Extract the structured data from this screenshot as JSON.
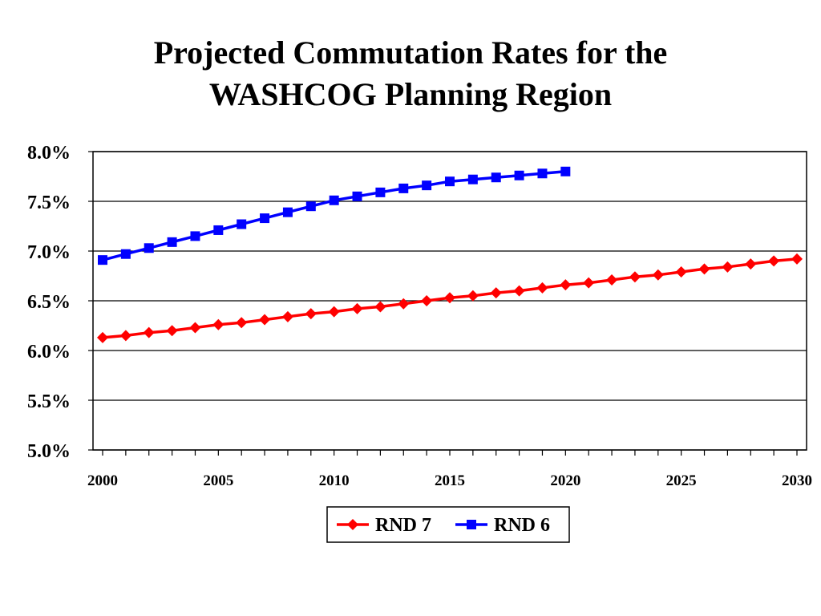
{
  "chart_data": {
    "type": "line",
    "title_line1": "Projected Commutation Rates for the",
    "title_line2": "WASHCOG Planning Region",
    "xlabel": "",
    "ylabel": "",
    "xlim": [
      2000,
      2030
    ],
    "ylim": [
      5.0,
      8.0
    ],
    "x_ticks": [
      "2000",
      "2005",
      "2010",
      "2015",
      "2020",
      "2025",
      "2030"
    ],
    "y_ticks": [
      "8.0%",
      "7.5%",
      "7.0%",
      "6.5%",
      "6.0%",
      "5.5%",
      "5.0%"
    ],
    "grid": true,
    "legend_position": "bottom-center",
    "series": [
      {
        "name": "RND 7",
        "color": "#ff0000",
        "marker": "diamond",
        "x": [
          2000,
          2001,
          2002,
          2003,
          2004,
          2005,
          2006,
          2007,
          2008,
          2009,
          2010,
          2011,
          2012,
          2013,
          2014,
          2015,
          2016,
          2017,
          2018,
          2019,
          2020,
          2021,
          2022,
          2023,
          2024,
          2025,
          2026,
          2027,
          2028,
          2029,
          2030
        ],
        "values": [
          6.13,
          6.15,
          6.18,
          6.2,
          6.23,
          6.26,
          6.28,
          6.31,
          6.34,
          6.37,
          6.39,
          6.42,
          6.44,
          6.47,
          6.5,
          6.53,
          6.55,
          6.58,
          6.6,
          6.63,
          6.66,
          6.68,
          6.71,
          6.74,
          6.76,
          6.79,
          6.82,
          6.84,
          6.87,
          6.9,
          6.92
        ]
      },
      {
        "name": "RND 6",
        "color": "#0000ff",
        "marker": "square",
        "x": [
          2000,
          2001,
          2002,
          2003,
          2004,
          2005,
          2006,
          2007,
          2008,
          2009,
          2010,
          2011,
          2012,
          2013,
          2014,
          2015,
          2016,
          2017,
          2018,
          2019,
          2020
        ],
        "values": [
          6.91,
          6.97,
          7.03,
          7.09,
          7.15,
          7.21,
          7.27,
          7.33,
          7.39,
          7.45,
          7.51,
          7.55,
          7.59,
          7.63,
          7.66,
          7.7,
          7.72,
          7.74,
          7.76,
          7.78,
          7.8
        ]
      }
    ]
  }
}
